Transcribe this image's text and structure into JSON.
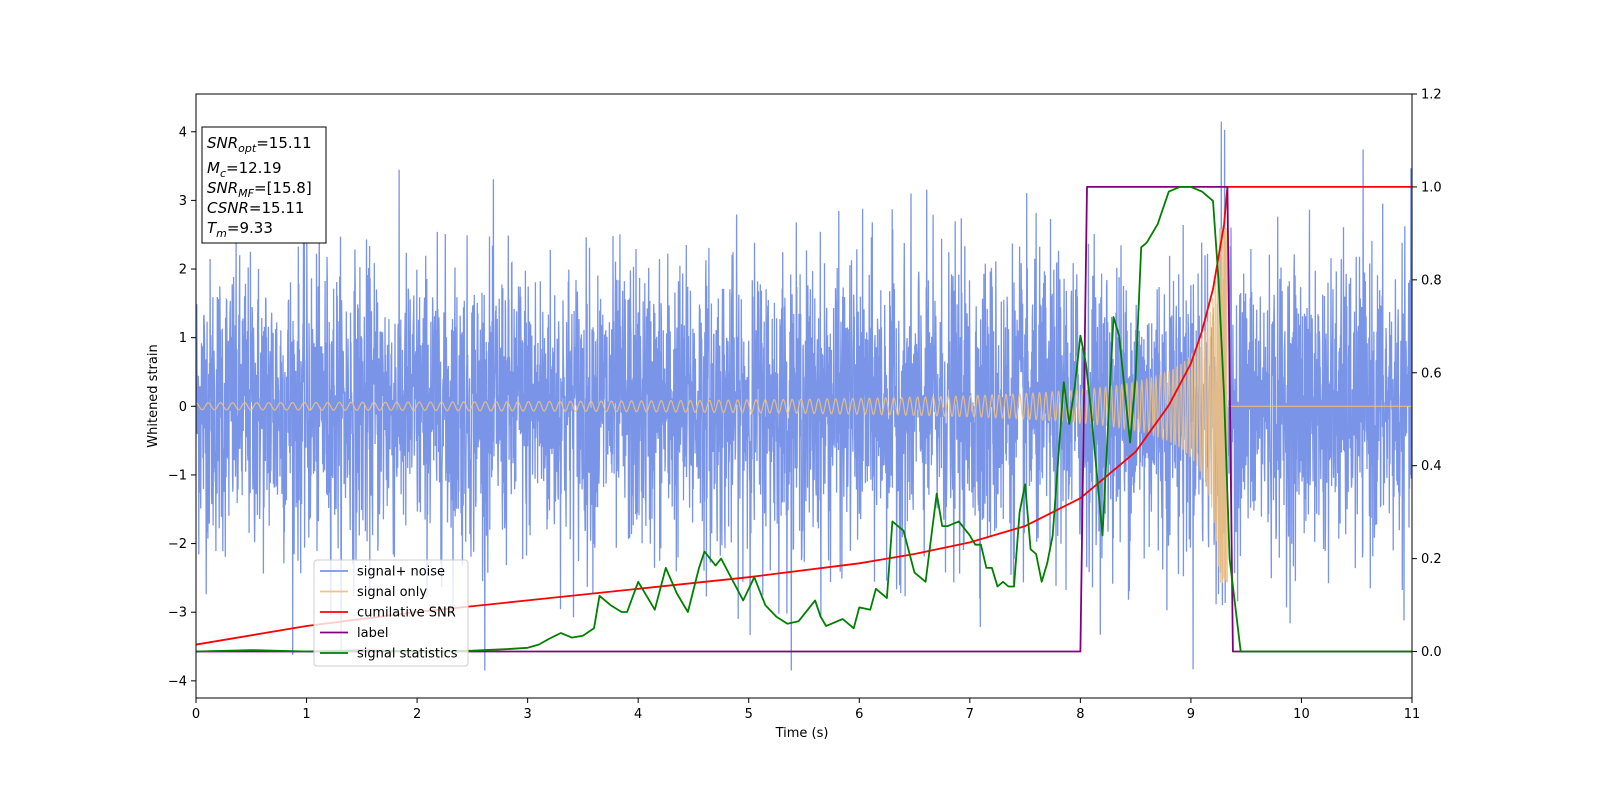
{
  "chart_data": {
    "type": "line",
    "title": "",
    "xlabel": "Time (s)",
    "ylabel": "Whitened strain",
    "xlim": [
      0,
      11
    ],
    "ylim": [
      -4.25,
      4.55
    ],
    "y2lim": [
      -0.1,
      1.2
    ],
    "xticks": [
      0,
      1,
      2,
      3,
      4,
      5,
      6,
      7,
      8,
      9,
      10,
      11
    ],
    "yticks": [
      -4,
      -3,
      -2,
      -1,
      0,
      1,
      2,
      3,
      4
    ],
    "y2ticks": [
      0.0,
      0.2,
      0.4,
      0.6,
      0.8,
      1.0,
      1.2
    ],
    "y2tick_labels": [
      "0.0",
      "0.2",
      "0.4",
      "0.6",
      "0.8",
      "1.0",
      "1.2"
    ],
    "grid": false,
    "legend_position": "lower-left",
    "annotation": [
      {
        "sym": "SNR",
        "sub": "opt",
        "val": "=15.11"
      },
      {
        "sym": "M",
        "sub": "c",
        "val": "=12.19"
      },
      {
        "sym": "SNR",
        "sub": "MF",
        "val": "=[15.8]"
      },
      {
        "sym": "CSNR",
        "sub": "",
        "val": "=15.11"
      },
      {
        "sym": "T",
        "sub": "m",
        "val": "=9.33"
      }
    ],
    "series": [
      {
        "name": "signal+ noise",
        "axis": "left",
        "color": "#7a95e8",
        "kind": "noisy",
        "sample_interval": 0.0025,
        "noise_std": 1.05,
        "approx_range": [
          -3.85,
          4.15
        ]
      },
      {
        "name": "signal only",
        "axis": "left",
        "color": "#f5c27a",
        "kind": "chirp",
        "merger_time": 9.33,
        "start_frequency_hz": 9,
        "amplitude_at_start": 0.05,
        "amplitude_at_9s": 0.75,
        "peak_amplitude": 2.6
      },
      {
        "name": "cumilative SNR",
        "axis": "right",
        "color": "#ff0000",
        "x": [
          0,
          1,
          2,
          3,
          4,
          5,
          6,
          6.5,
          7,
          7.5,
          8,
          8.5,
          8.8,
          9.0,
          9.1,
          9.2,
          9.3,
          9.33,
          11
        ],
        "y": [
          0.015,
          0.055,
          0.085,
          0.11,
          0.135,
          0.16,
          0.19,
          0.21,
          0.235,
          0.27,
          0.33,
          0.43,
          0.53,
          0.62,
          0.69,
          0.78,
          0.92,
          1.0,
          1.0
        ]
      },
      {
        "name": "label",
        "axis": "right",
        "color": "#800080",
        "x": [
          0,
          8.0,
          8.06,
          9.33,
          9.38,
          11
        ],
        "y": [
          0,
          0,
          1,
          1,
          0,
          0
        ]
      },
      {
        "name": "signal statistics",
        "axis": "right",
        "color": "#008000",
        "x": [
          0,
          0.5,
          1,
          1.5,
          2,
          2.5,
          2.8,
          3.0,
          3.1,
          3.2,
          3.3,
          3.4,
          3.5,
          3.6,
          3.65,
          3.75,
          3.85,
          3.9,
          4.0,
          4.15,
          4.25,
          4.35,
          4.45,
          4.55,
          4.6,
          4.7,
          4.75,
          4.85,
          4.95,
          5.05,
          5.15,
          5.25,
          5.35,
          5.45,
          5.5,
          5.6,
          5.65,
          5.7,
          5.75,
          5.85,
          5.95,
          6.0,
          6.1,
          6.15,
          6.25,
          6.3,
          6.4,
          6.5,
          6.6,
          6.7,
          6.75,
          6.8,
          6.9,
          7.0,
          7.05,
          7.1,
          7.15,
          7.2,
          7.25,
          7.3,
          7.35,
          7.4,
          7.45,
          7.5,
          7.55,
          7.6,
          7.65,
          7.7,
          7.75,
          7.85,
          7.9,
          7.95,
          8.0,
          8.05,
          8.1,
          8.2,
          8.3,
          8.35,
          8.45,
          8.5,
          8.55,
          8.6,
          8.7,
          8.8,
          8.9,
          9.0,
          9.1,
          9.2,
          9.25,
          9.3,
          9.35,
          9.45,
          9.5,
          11
        ],
        "y": [
          0,
          0.003,
          0.0,
          0.003,
          0.0,
          0.002,
          0.005,
          0.008,
          0.015,
          0.028,
          0.04,
          0.03,
          0.034,
          0.05,
          0.12,
          0.1,
          0.085,
          0.085,
          0.15,
          0.09,
          0.18,
          0.125,
          0.085,
          0.18,
          0.215,
          0.185,
          0.2,
          0.155,
          0.11,
          0.16,
          0.1,
          0.075,
          0.06,
          0.065,
          0.08,
          0.11,
          0.075,
          0.055,
          0.06,
          0.07,
          0.05,
          0.095,
          0.09,
          0.135,
          0.115,
          0.28,
          0.26,
          0.17,
          0.15,
          0.34,
          0.27,
          0.27,
          0.28,
          0.25,
          0.23,
          0.23,
          0.18,
          0.18,
          0.14,
          0.15,
          0.14,
          0.14,
          0.3,
          0.36,
          0.22,
          0.21,
          0.15,
          0.19,
          0.25,
          0.58,
          0.49,
          0.57,
          0.68,
          0.62,
          0.51,
          0.25,
          0.72,
          0.68,
          0.45,
          0.59,
          0.87,
          0.88,
          0.92,
          0.99,
          1.0,
          1.0,
          0.99,
          0.97,
          0.8,
          0.55,
          0.2,
          0.0,
          0.0,
          0.0
        ]
      }
    ]
  }
}
